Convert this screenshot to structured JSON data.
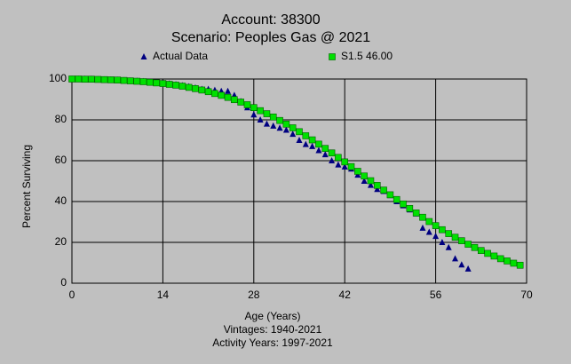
{
  "chart_data": {
    "type": "scatter",
    "title": "Account: 38300",
    "subtitle": "Scenario: Peoples Gas @ 2021",
    "x_label": "Age (Years)",
    "y_label": "Percent Surviving",
    "notes": [
      "Vintages: 1940-2021",
      "Activity Years: 1997-2021"
    ],
    "xlim": [
      0,
      70
    ],
    "xticks": [
      0,
      14,
      28,
      42,
      56,
      70
    ],
    "ylim": [
      0,
      100
    ],
    "yticks": [
      0,
      20,
      40,
      60,
      80,
      100
    ],
    "grid": true,
    "series": [
      {
        "name": "Actual Data",
        "color": "#000080",
        "marker": "triangle",
        "x": [
          0,
          1,
          2,
          3,
          4,
          5,
          6,
          7,
          8,
          9,
          10,
          11,
          12,
          13,
          14,
          15,
          16,
          17,
          18,
          19,
          20,
          21,
          22,
          23,
          24,
          25,
          26,
          27,
          28,
          29,
          30,
          31,
          32,
          33,
          34,
          35,
          36,
          37,
          38,
          39,
          40,
          41,
          42,
          43,
          44,
          45,
          46,
          47,
          48,
          49,
          50,
          51,
          52,
          53,
          54,
          55,
          56,
          57,
          58,
          59,
          60,
          61
        ],
        "values": [
          100,
          100,
          100,
          100,
          99.8,
          99.7,
          99.6,
          99.5,
          99.3,
          99.1,
          99,
          98.8,
          98.5,
          98.3,
          98,
          97.7,
          97.3,
          96.8,
          96.3,
          95.7,
          95,
          95,
          94.5,
          94,
          94,
          92,
          89,
          86,
          82.5,
          80,
          78,
          77,
          76,
          75,
          73,
          70,
          68,
          67,
          65,
          63,
          60,
          58,
          57,
          56,
          53,
          50,
          48,
          46,
          45,
          43,
          40,
          38,
          36,
          34,
          27,
          25,
          23,
          20,
          17.5,
          12,
          9,
          7
        ]
      },
      {
        "name": "S1.5 46.00",
        "color": "#00e000",
        "marker": "square",
        "x": [
          0,
          1,
          2,
          3,
          4,
          5,
          6,
          7,
          8,
          9,
          10,
          11,
          12,
          13,
          14,
          15,
          16,
          17,
          18,
          19,
          20,
          21,
          22,
          23,
          24,
          25,
          26,
          27,
          28,
          29,
          30,
          31,
          32,
          33,
          34,
          35,
          36,
          37,
          38,
          39,
          40,
          41,
          42,
          43,
          44,
          45,
          46,
          47,
          48,
          49,
          50,
          51,
          52,
          53,
          54,
          55,
          56,
          57,
          58,
          59,
          60,
          61,
          62,
          63,
          64,
          65,
          66,
          67,
          68,
          69
        ],
        "values": [
          100,
          100,
          99.9,
          99.9,
          99.8,
          99.7,
          99.6,
          99.5,
          99.3,
          99.1,
          98.9,
          98.7,
          98.4,
          98.1,
          97.8,
          97.4,
          97,
          96.5,
          95.9,
          95.3,
          94.6,
          93.8,
          92.9,
          92,
          91,
          89.9,
          88.7,
          87.4,
          86,
          84.5,
          83,
          81.4,
          79.7,
          77.9,
          76.1,
          74.2,
          72.2,
          70.2,
          68.1,
          66,
          63.8,
          61.6,
          59.4,
          57.1,
          54.8,
          52.5,
          50.2,
          47.9,
          45.6,
          43.3,
          41,
          38.8,
          36.6,
          34.4,
          32.3,
          30.2,
          28.2,
          26.2,
          24.3,
          22.5,
          20.8,
          19.1,
          17.5,
          16,
          14.6,
          13.3,
          12,
          10.9,
          9.8,
          8.8
        ]
      }
    ]
  }
}
